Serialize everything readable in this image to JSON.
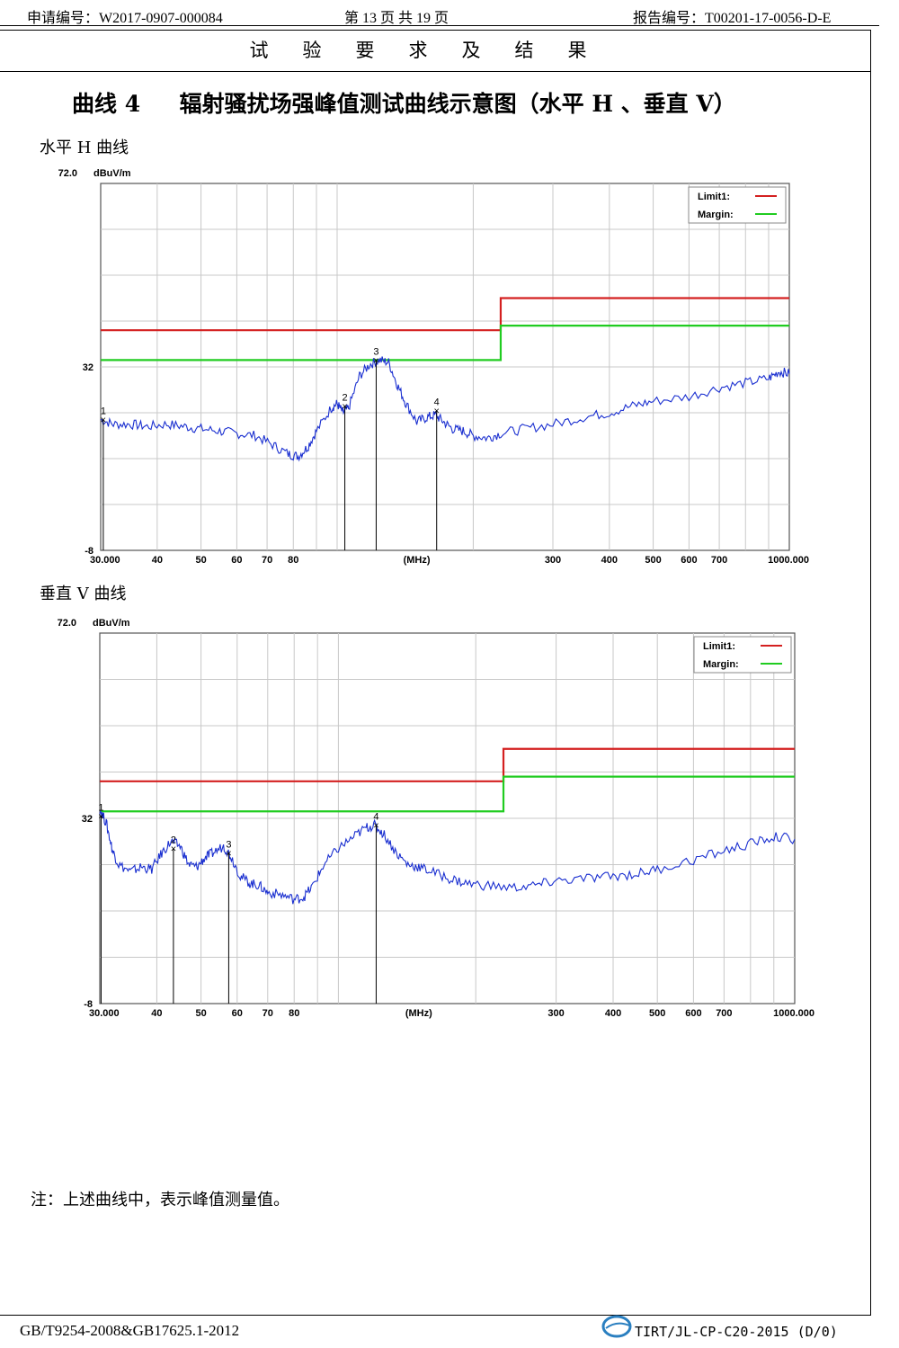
{
  "header": {
    "app_no": "申请编号：W2017-0907-000084",
    "page_info": "第 13 页 共 19 页",
    "report_no": "报告编号：T00201-17-0056-D-E"
  },
  "section_title": "试验要求及结果",
  "main_title": "曲线 4     辐射骚扰场强峰值测试曲线示意图（水平 H 、垂直 V）",
  "charts": [
    {
      "subtitle": "水平 H 曲线",
      "chart_data": {
        "type": "line",
        "y_unit": "dBuV/m",
        "x_unit": "(MHz)",
        "x_scale": "log",
        "xlim": [
          30,
          1000
        ],
        "ylim": [
          -8,
          72
        ],
        "y_ticks": [
          "72.0",
          "32",
          "-8"
        ],
        "x_ticks": [
          "30.000",
          "40",
          "50",
          "60",
          "70",
          "80",
          "(MHz)",
          "300",
          "400",
          "500",
          "600",
          "700",
          "1000.000"
        ],
        "grid": true,
        "legend_placement": "top-right",
        "legend": [
          {
            "name": "Limit1:",
            "color": "#d42020"
          },
          {
            "name": "Margin:",
            "color": "#20cc20"
          }
        ],
        "limit1": [
          {
            "x": [
              30,
              230
            ],
            "y": 40
          },
          {
            "x": [
              230,
              1000
            ],
            "y": 47
          }
        ],
        "margin": [
          {
            "x": [
              30,
              230
            ],
            "y": 33.5
          },
          {
            "x": [
              230,
              1000
            ],
            "y": 41
          }
        ],
        "trace_color": "#1a2fd0",
        "trace": [
          [
            30,
            20.5
          ],
          [
            32,
            19.5
          ],
          [
            35,
            19.5
          ],
          [
            38,
            19
          ],
          [
            42,
            19.5
          ],
          [
            46,
            19
          ],
          [
            50,
            18.5
          ],
          [
            55,
            18
          ],
          [
            60,
            17.5
          ],
          [
            66,
            17
          ],
          [
            72,
            15
          ],
          [
            78,
            13
          ],
          [
            82,
            12.5
          ],
          [
            86,
            14.5
          ],
          [
            90,
            18
          ],
          [
            97,
            23
          ],
          [
            100,
            24
          ],
          [
            103,
            22
          ],
          [
            106,
            23
          ],
          [
            112,
            30
          ],
          [
            118,
            32.5
          ],
          [
            124,
            33.5
          ],
          [
            130,
            33
          ],
          [
            136,
            28
          ],
          [
            142,
            24
          ],
          [
            150,
            20
          ],
          [
            158,
            21
          ],
          [
            165,
            21.5
          ],
          [
            172,
            20
          ],
          [
            180,
            18.5
          ],
          [
            190,
            18
          ],
          [
            200,
            17
          ],
          [
            215,
            16.5
          ],
          [
            230,
            17.5
          ],
          [
            260,
            18.5
          ],
          [
            300,
            19.5
          ],
          [
            350,
            21
          ],
          [
            400,
            22
          ],
          [
            450,
            23.5
          ],
          [
            500,
            24.5
          ],
          [
            600,
            25.5
          ],
          [
            700,
            27.5
          ],
          [
            800,
            28.5
          ],
          [
            900,
            29.5
          ],
          [
            950,
            31
          ],
          [
            1000,
            30.5
          ]
        ],
        "markers": [
          {
            "label": "1",
            "x": 30.4,
            "y": 20.5
          },
          {
            "label": "2",
            "x": 104,
            "y": 23.5
          },
          {
            "label": "3",
            "x": 122,
            "y": 33.5
          },
          {
            "label": "4",
            "x": 166,
            "y": 22.5
          }
        ]
      }
    },
    {
      "subtitle": "垂直 V 曲线",
      "chart_data": {
        "type": "line",
        "y_unit": "dBuV/m",
        "x_unit": "(MHz)",
        "x_scale": "log",
        "xlim": [
          30,
          1000
        ],
        "ylim": [
          -8,
          72
        ],
        "y_ticks": [
          "72.0",
          "32",
          "-8"
        ],
        "x_ticks": [
          "30.000",
          "40",
          "50",
          "60",
          "70",
          "80",
          "(MHz)",
          "300",
          "400",
          "500",
          "600",
          "700",
          "1000.000"
        ],
        "grid": true,
        "legend_placement": "top-right",
        "legend": [
          {
            "name": "Limit1:",
            "color": "#d42020"
          },
          {
            "name": "Margin:",
            "color": "#20cc20"
          }
        ],
        "limit1": [
          {
            "x": [
              30,
              230
            ],
            "y": 40
          },
          {
            "x": [
              230,
              1000
            ],
            "y": 47
          }
        ],
        "margin": [
          {
            "x": [
              30,
              230
            ],
            "y": 33.5
          },
          {
            "x": [
              230,
              1000
            ],
            "y": 41
          }
        ],
        "trace_color": "#1a2fd0",
        "trace": [
          [
            30,
            34
          ],
          [
            31,
            31
          ],
          [
            32,
            25
          ],
          [
            33,
            22
          ],
          [
            35,
            20.5
          ],
          [
            37,
            21.5
          ],
          [
            39,
            21
          ],
          [
            41,
            24.5
          ],
          [
            43,
            27
          ],
          [
            45,
            26
          ],
          [
            47,
            22
          ],
          [
            49,
            21.5
          ],
          [
            51,
            23.5
          ],
          [
            53,
            24.5
          ],
          [
            56,
            26
          ],
          [
            58,
            24
          ],
          [
            61,
            19.5
          ],
          [
            64,
            18
          ],
          [
            67,
            17.5
          ],
          [
            70,
            16
          ],
          [
            75,
            15.5
          ],
          [
            80,
            14.5
          ],
          [
            84,
            15
          ],
          [
            88,
            17.5
          ],
          [
            93,
            22
          ],
          [
            100,
            25.5
          ],
          [
            108,
            28
          ],
          [
            115,
            30
          ],
          [
            120,
            30.5
          ],
          [
            126,
            28.5
          ],
          [
            134,
            24.5
          ],
          [
            142,
            22
          ],
          [
            150,
            21.5
          ],
          [
            160,
            20.5
          ],
          [
            175,
            19
          ],
          [
            190,
            18
          ],
          [
            210,
            17.5
          ],
          [
            240,
            17
          ],
          [
            270,
            17.5
          ],
          [
            300,
            18.5
          ],
          [
            350,
            19
          ],
          [
            400,
            19.5
          ],
          [
            450,
            20
          ],
          [
            500,
            21
          ],
          [
            600,
            23
          ],
          [
            700,
            25
          ],
          [
            800,
            26.5
          ],
          [
            900,
            28
          ],
          [
            1000,
            27.5
          ]
        ],
        "markers": [
          {
            "label": "1",
            "x": 30.2,
            "y": 32.5
          },
          {
            "label": "2",
            "x": 43.5,
            "y": 25.5
          },
          {
            "label": "3",
            "x": 57.5,
            "y": 24.5
          },
          {
            "label": "4",
            "x": 121,
            "y": 30.5
          }
        ]
      }
    }
  ],
  "note": "注：上述曲线中，表示峰值测量值。",
  "footer": {
    "standard": "GB/T9254-2008&GB17625.1-2012",
    "doc_code": "TIRT/JL-CP-C20-2015 (D/0)"
  }
}
